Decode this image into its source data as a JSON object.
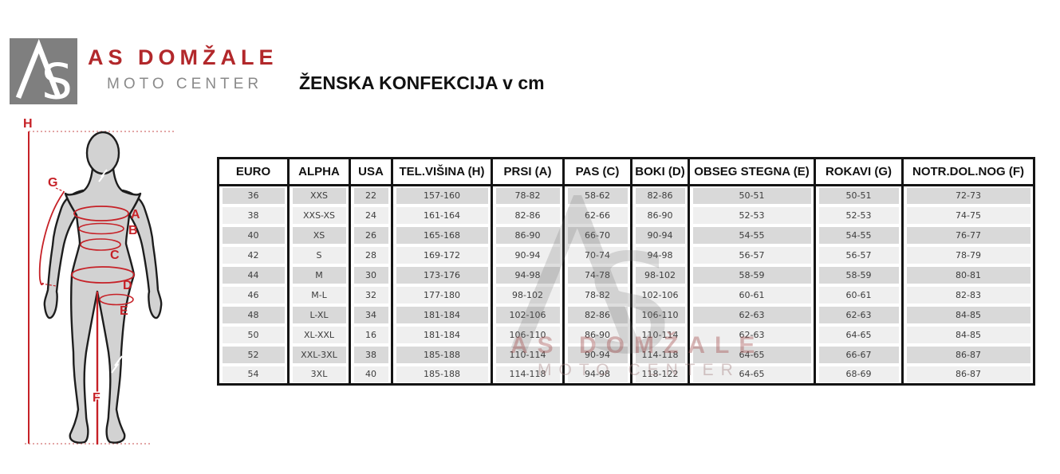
{
  "brand": {
    "monogram_a": "A",
    "monogram_s": "S",
    "name": "AS DOMŽALE",
    "subtitle": "MOTO CENTER"
  },
  "title": "ŽENSKA KONFEKCIJA v cm",
  "figure": {
    "labels": {
      "h": "H",
      "g": "G",
      "a": "A",
      "b": "B",
      "c": "C",
      "d": "D",
      "e": "E",
      "f": "F"
    }
  },
  "watermark": {
    "monogram_s": "S",
    "name": "AS DOMŽALE",
    "subtitle": "MOTO CENTER"
  },
  "table": {
    "columns": [
      "EURO",
      "ALPHA",
      "USA",
      "TEL.VIŠINA (H)",
      "PRSI (A)",
      "PAS (C)",
      "BOKI (D)",
      "OBSEG STEGNA (E)",
      "ROKAVI (G)",
      "NOTR.DOL.NOG (F)"
    ],
    "rows": [
      [
        "36",
        "XXS",
        "22",
        "157-160",
        "78-82",
        "58-62",
        "82-86",
        "50-51",
        "50-51",
        "72-73"
      ],
      [
        "38",
        "XXS-XS",
        "24",
        "161-164",
        "82-86",
        "62-66",
        "86-90",
        "52-53",
        "52-53",
        "74-75"
      ],
      [
        "40",
        "XS",
        "26",
        "165-168",
        "86-90",
        "66-70",
        "90-94",
        "54-55",
        "54-55",
        "76-77"
      ],
      [
        "42",
        "S",
        "28",
        "169-172",
        "90-94",
        "70-74",
        "94-98",
        "56-57",
        "56-57",
        "78-79"
      ],
      [
        "44",
        "M",
        "30",
        "173-176",
        "94-98",
        "74-78",
        "98-102",
        "58-59",
        "58-59",
        "80-81"
      ],
      [
        "46",
        "M-L",
        "32",
        "177-180",
        "98-102",
        "78-82",
        "102-106",
        "60-61",
        "60-61",
        "82-83"
      ],
      [
        "48",
        "L-XL",
        "34",
        "181-184",
        "102-106",
        "82-86",
        "106-110",
        "62-63",
        "62-63",
        "84-85"
      ],
      [
        "50",
        "XL-XXL",
        "16",
        "181-184",
        "106-110",
        "86-90",
        "110-114",
        "62-63",
        "64-65",
        "84-85"
      ],
      [
        "52",
        "XXL-3XL",
        "38",
        "185-188",
        "110-114",
        "90-94",
        "114-118",
        "64-65",
        "66-67",
        "86-87"
      ],
      [
        "54",
        "3XL",
        "40",
        "185-188",
        "114-118",
        "94-98",
        "118-122",
        "64-65",
        "68-69",
        "86-87"
      ]
    ]
  },
  "colors": {
    "accent_red": "#b2282b",
    "measure_red": "#c62127",
    "logo_gray": "#7f7f7f",
    "subtitle_gray": "#8a8a8a",
    "row_dark": "#d9d9d9",
    "row_light": "#efefef",
    "table_border": "#141414",
    "body_fill": "#d2d2d2"
  }
}
